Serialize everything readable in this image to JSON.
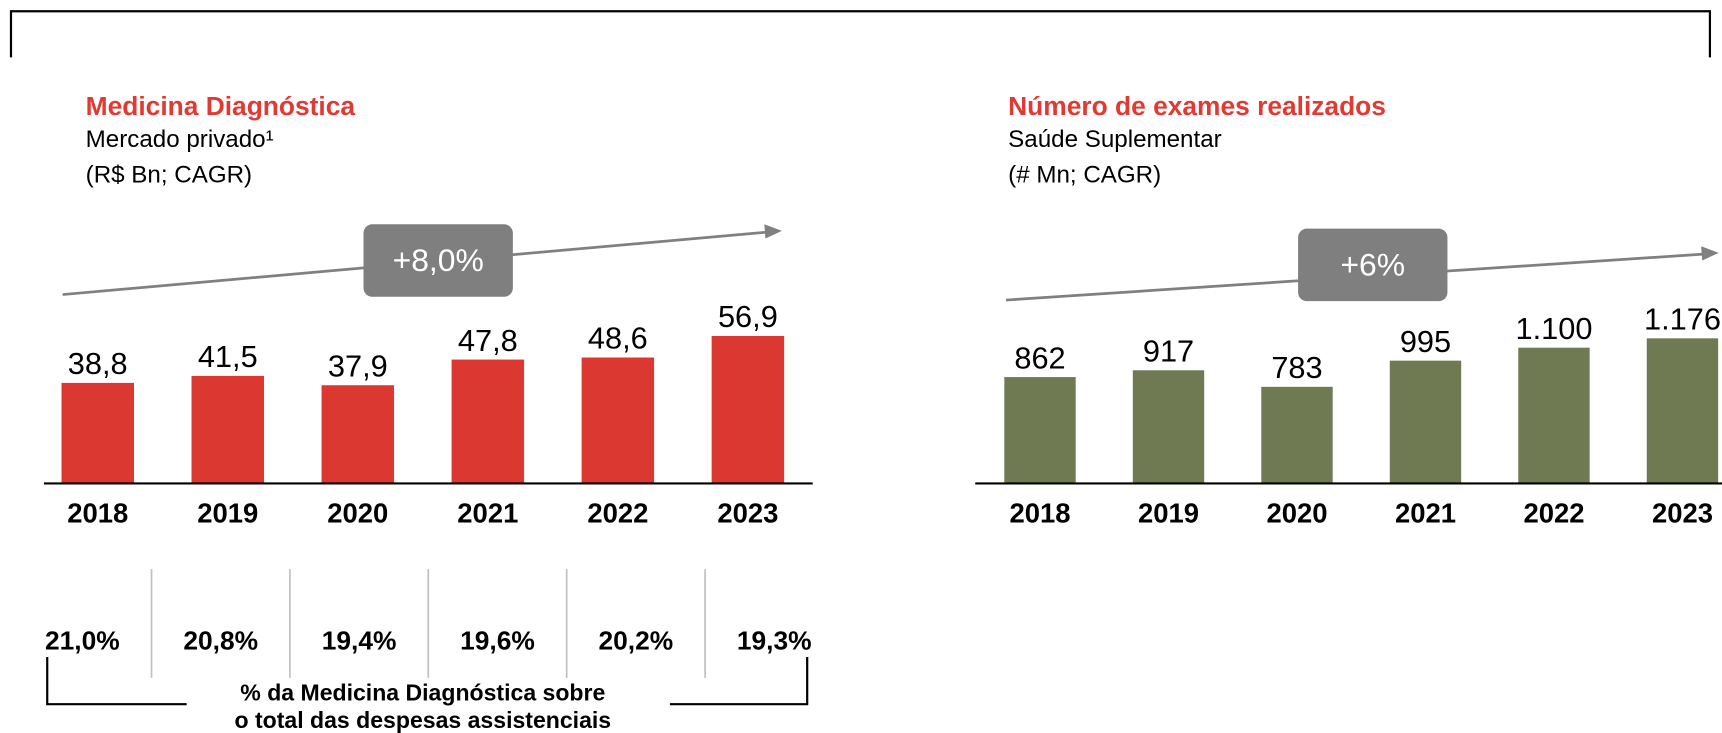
{
  "chart_data": [
    {
      "type": "bar",
      "title": "Medicina Diagnóstica",
      "subtitle": [
        "Mercado privado¹",
        "(R$ Bn; CAGR)"
      ],
      "cagr_label": "+8,0%",
      "categories": [
        "2018",
        "2019",
        "2020",
        "2021",
        "2022",
        "2023"
      ],
      "values": [
        38.8,
        41.5,
        37.9,
        47.8,
        48.6,
        56.9
      ],
      "value_labels": [
        "38,8",
        "41,5",
        "37,9",
        "47,8",
        "48,6",
        "56,9"
      ],
      "color": "#dc3832",
      "ylim": [
        0,
        100
      ],
      "shares": [
        "21,0%",
        "20,8%",
        "19,4%",
        "19,6%",
        "20,2%",
        "19,3%"
      ],
      "shares_note": [
        "% da Medicina Diagnóstica sobre",
        "o total das despesas assistenciais"
      ]
    },
    {
      "type": "bar",
      "title": "Número de exames realizados",
      "subtitle": [
        "Saúde Suplementar",
        "(# Mn; CAGR)"
      ],
      "cagr_label": "+6%",
      "categories": [
        "2018",
        "2019",
        "2020",
        "2021",
        "2022",
        "2023"
      ],
      "values": [
        862,
        917,
        783,
        995,
        1100,
        1176
      ],
      "value_labels": [
        "862",
        "917",
        "783",
        "995",
        "1.100",
        "1.176"
      ],
      "color": "#6f7a52",
      "ylim": [
        0,
        2100
      ]
    }
  ]
}
